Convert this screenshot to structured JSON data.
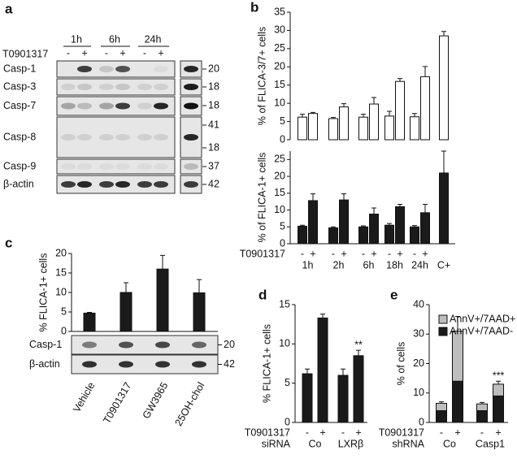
{
  "panel_labels": [
    "a",
    "b",
    "c",
    "d",
    "e"
  ],
  "blot_a": {
    "time_labels": [
      "1h",
      "6h",
      "24h"
    ],
    "treatment": "T0901317",
    "signs": [
      "-",
      "+",
      "-",
      "+",
      "-",
      "+"
    ],
    "rows": [
      "Casp-1",
      "Casp-3",
      "Casp-7",
      "Casp-8",
      "Casp-9",
      "β-actin"
    ],
    "markers": [
      "20",
      "18",
      "18",
      "41",
      "18",
      "37",
      "42"
    ]
  },
  "blot_c": {
    "rows": [
      "Casp-1",
      "β-actin"
    ],
    "markers": [
      "20",
      "42"
    ]
  },
  "chart_data": [
    {
      "type": "bar",
      "ylabel": "% of FLICA-3/7+ cells",
      "ylim": [
        0,
        35
      ],
      "yticks": [
        0,
        5,
        10,
        15,
        20,
        25,
        30,
        35
      ],
      "series": [
        {
          "color": "#ffffff",
          "values": [
            6.2,
            7.2,
            5.8,
            9,
            6.2,
            9.8,
            6.5,
            16,
            6.3,
            17.3,
            28.5
          ],
          "errors": [
            0.8,
            0.3,
            0.3,
            0.9,
            0.8,
            1.8,
            1.3,
            0.8,
            0.9,
            2.8,
            1.2
          ]
        }
      ]
    },
    {
      "type": "bar",
      "ylabel": "% of FLICA-1+ cells",
      "ylim": [
        0,
        27.5
      ],
      "yticks": [
        0,
        5,
        10,
        15,
        20,
        25
      ],
      "x_labels": [
        "T0901317"
      ],
      "categories": [
        "-",
        "+",
        "-",
        "+",
        "-",
        "+",
        "-",
        "+",
        "-",
        "+",
        null
      ],
      "groups": [
        "1h",
        "2h",
        "6h",
        "18h",
        "24h",
        "C+"
      ],
      "series": [
        {
          "color": "#1a1a1a",
          "values": [
            5.2,
            12.8,
            4.7,
            13,
            5,
            8.8,
            5.5,
            11,
            5,
            9.2,
            21
          ],
          "errors": [
            0.3,
            2,
            0.3,
            1.8,
            0.3,
            1.8,
            0.5,
            0.7,
            0.4,
            2.5,
            6.5
          ]
        }
      ]
    },
    {
      "type": "bar",
      "ylabel": "% FLICA-1+ cells",
      "ylim": [
        0,
        20
      ],
      "yticks": [
        0,
        5,
        10,
        15,
        20
      ],
      "categories": [
        "Vehicle",
        "T0901317",
        "GW3965",
        "25OH-chol"
      ],
      "series": [
        {
          "color": "#1a1a1a",
          "values": [
            4.7,
            10,
            16,
            9.9
          ],
          "errors": [
            0.2,
            2.5,
            3.5,
            3.4
          ]
        }
      ]
    },
    {
      "type": "bar",
      "ylabel": "% FLICA-1+ cells",
      "ylim": [
        0,
        15
      ],
      "yticks": [
        0,
        5,
        10,
        15
      ],
      "x_labels": [
        "T0901317",
        "siRNA"
      ],
      "categories": [
        "-",
        "+",
        "-",
        "+"
      ],
      "groups": [
        "Co",
        "LXRβ"
      ],
      "annotation": "**",
      "series": [
        {
          "color": "#1a1a1a",
          "values": [
            6.2,
            13.3,
            6,
            8.5
          ],
          "errors": [
            0.6,
            0.5,
            0.8,
            0.7
          ]
        }
      ]
    },
    {
      "type": "stacked_bar",
      "ylabel": "% of cells",
      "ylim": [
        0,
        40
      ],
      "yticks": [
        0,
        10,
        20,
        30,
        40
      ],
      "x_labels": [
        "T0901317",
        "shRNA"
      ],
      "categories": [
        "-",
        "+",
        "-",
        "+"
      ],
      "groups": [
        "Co",
        "Casp1"
      ],
      "annotation": "***",
      "series": [
        {
          "name": "AnnV+/7AAD-",
          "color": "#1a1a1a",
          "values": [
            4,
            14,
            4,
            9
          ],
          "errors": [
            1,
            2.5,
            0.7,
            1.8
          ]
        },
        {
          "name": "AnnV+/7AAD+",
          "color": "#bdbdbd",
          "values": [
            2.5,
            17,
            2.3,
            4
          ],
          "errors": [
            0.5,
            5,
            0.5,
            1
          ]
        }
      ]
    }
  ]
}
